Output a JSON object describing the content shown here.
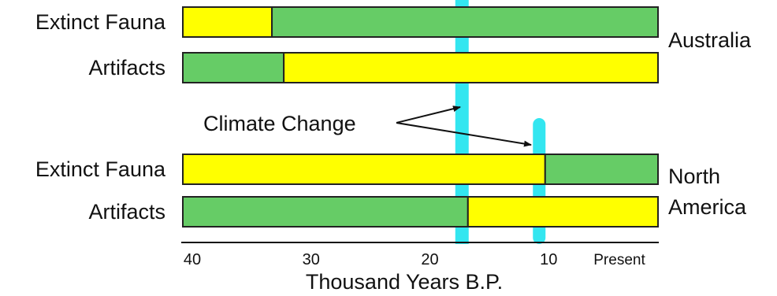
{
  "chart_data": {
    "type": "timeline-bars",
    "xlabel": "Thousand Years B.P.",
    "xlim": [
      40,
      0
    ],
    "ticks": [
      {
        "value": 40,
        "label": "40"
      },
      {
        "value": 30,
        "label": "30"
      },
      {
        "value": 20,
        "label": "20"
      },
      {
        "value": 10,
        "label": "10"
      },
      {
        "value": 0,
        "label": "Present"
      }
    ],
    "regions": [
      {
        "name": "Australia",
        "rows": [
          {
            "label": "Extinct Fauna",
            "segments": [
              {
                "from": 40,
                "to": 32.5,
                "color": "#ffff00"
              },
              {
                "from": 32.5,
                "to": 0,
                "color": "#66cc66"
              }
            ]
          },
          {
            "label": "Artifacts",
            "segments": [
              {
                "from": 40,
                "to": 31.5,
                "color": "#66cc66"
              },
              {
                "from": 31.5,
                "to": 0,
                "color": "#ffff00"
              }
            ]
          }
        ]
      },
      {
        "name": "North America",
        "name_lines": [
          "North",
          "America"
        ],
        "rows": [
          {
            "label": "Extinct Fauna",
            "segments": [
              {
                "from": 40,
                "to": 9.5,
                "color": "#ffff00"
              },
              {
                "from": 9.5,
                "to": 0,
                "color": "#66cc66"
              }
            ]
          },
          {
            "label": "Artifacts",
            "segments": [
              {
                "from": 40,
                "to": 16,
                "color": "#66cc66"
              },
              {
                "from": 16,
                "to": 0,
                "color": "#ffff00"
              }
            ]
          }
        ]
      }
    ],
    "climate_change": {
      "label": "Climate Change",
      "events": [
        16.5,
        10
      ],
      "color": "#33e6f0"
    },
    "colors": {
      "yellow": "#ffff00",
      "green": "#66cc66",
      "outline": "#222222"
    }
  }
}
